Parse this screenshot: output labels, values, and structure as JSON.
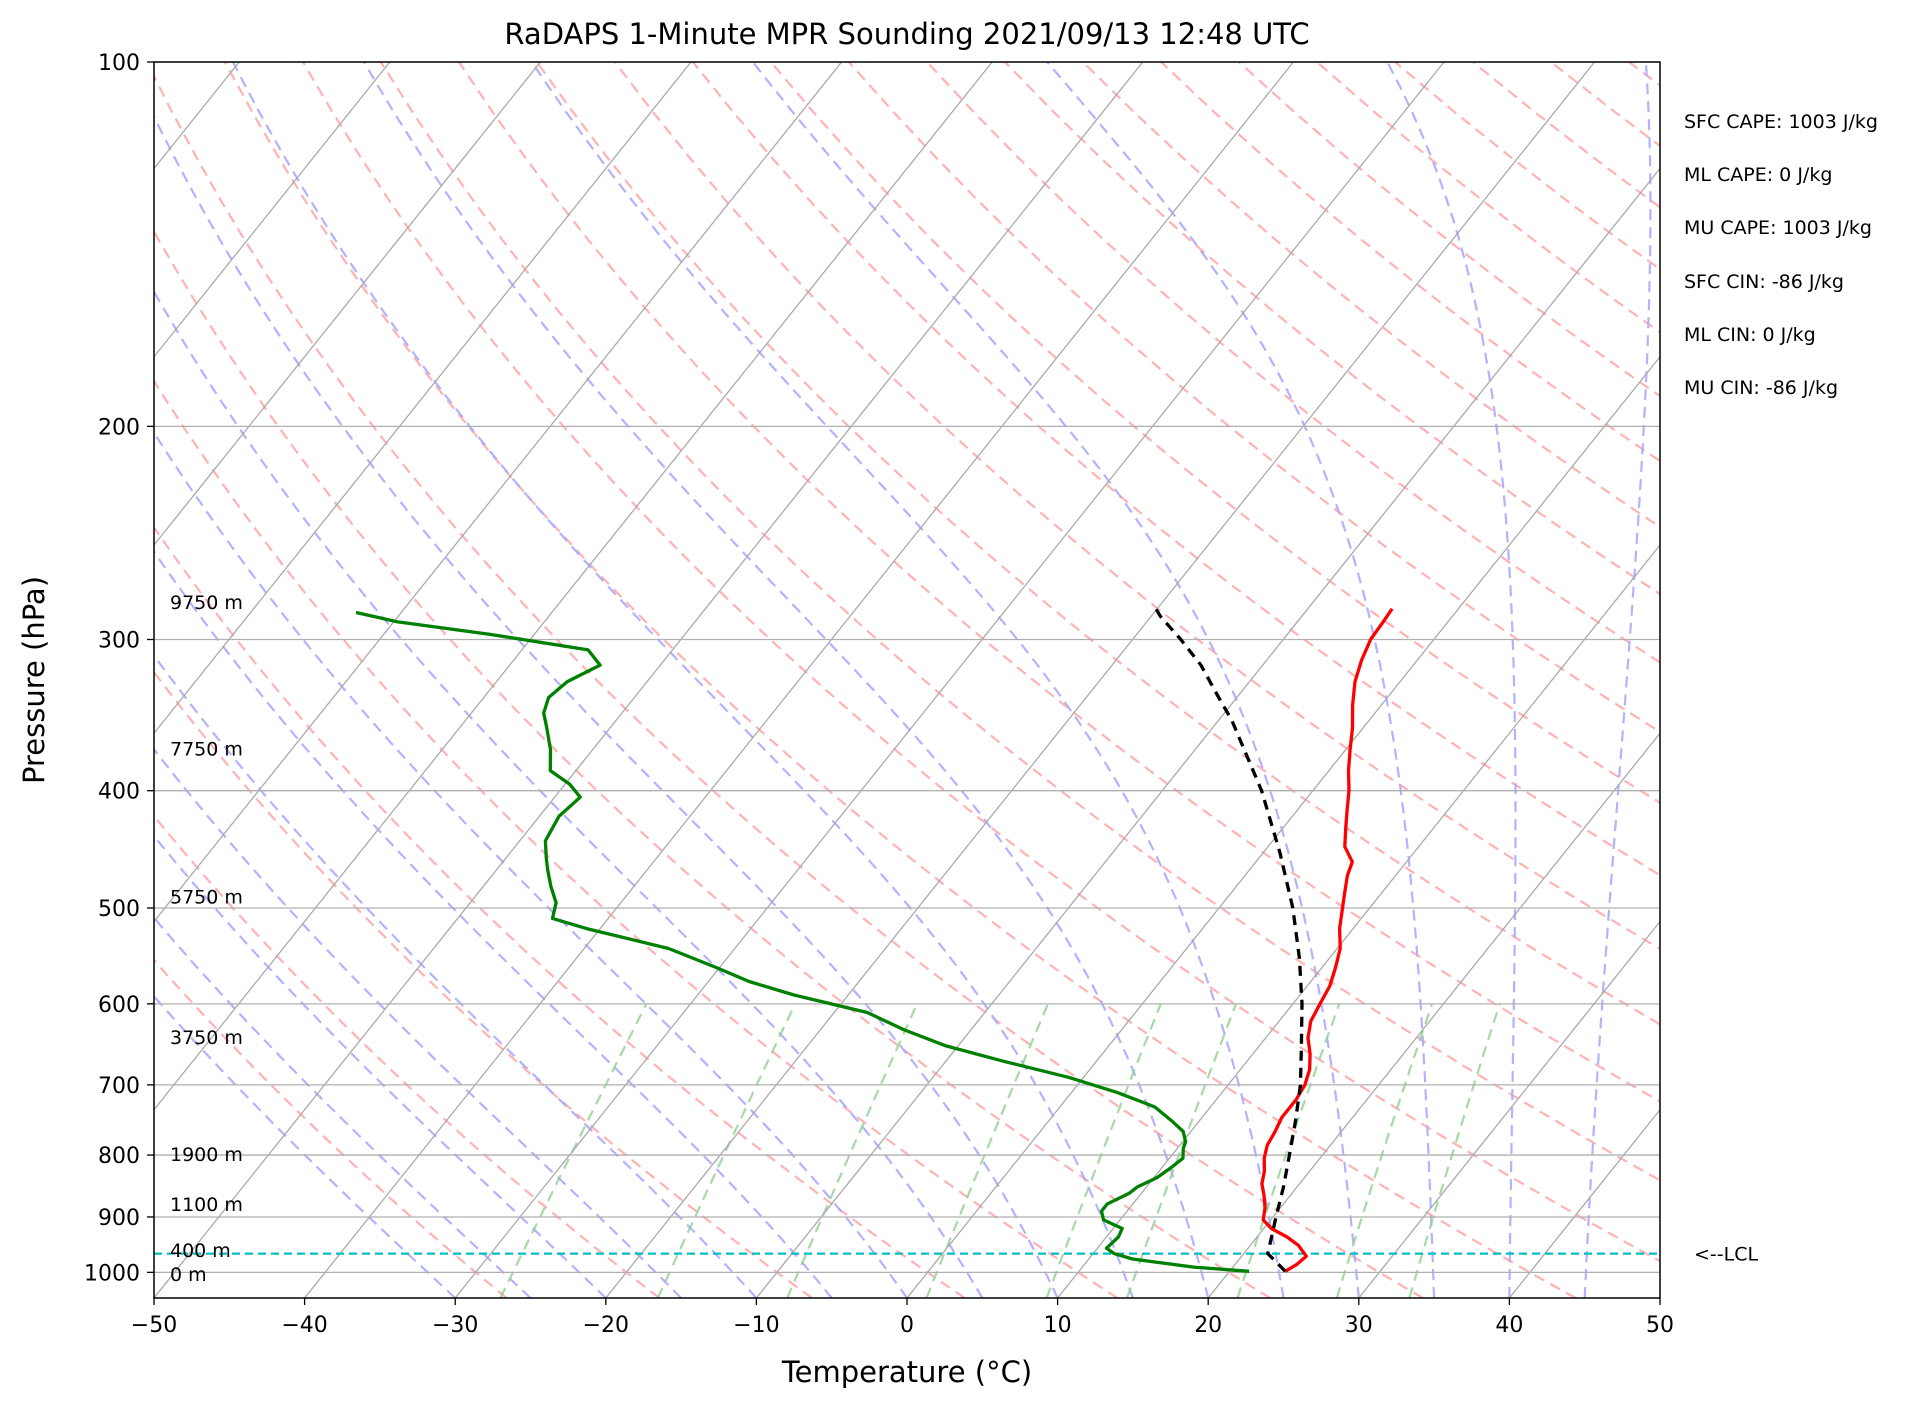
{
  "chart_data": {
    "type": "line",
    "subtype": "skew-t log-p sounding",
    "title": "RaDAPS 1-Minute MPR Sounding 2021/09/13 12:48 UTC",
    "xlabel": "Temperature (°C)",
    "ylabel": "Pressure (hPa)",
    "xlim": [
      -50,
      50
    ],
    "ylim": [
      1050,
      100
    ],
    "y_scale": "log",
    "x_ticks": [
      "−50",
      "−40",
      "−30",
      "−20",
      "−10",
      "0",
      "10",
      "20",
      "30",
      "40",
      "50"
    ],
    "x_tick_values": [
      -50,
      -40,
      -30,
      -20,
      -10,
      0,
      10,
      20,
      30,
      40,
      50
    ],
    "y_ticks": [
      "100",
      "200",
      "300",
      "400",
      "500",
      "600",
      "700",
      "800",
      "900",
      "1000"
    ],
    "y_tick_values": [
      100,
      200,
      300,
      400,
      500,
      600,
      700,
      800,
      900,
      1000
    ],
    "grid": "horizontal isobars at y ticks",
    "series": [
      {
        "role": "temperature",
        "color": "#ff0000",
        "style": "solid",
        "points": [
          [
            23.7,
            998
          ],
          [
            24.1,
            985
          ],
          [
            24.3,
            970
          ],
          [
            23.2,
            950
          ],
          [
            22.0,
            935
          ],
          [
            20.5,
            920
          ],
          [
            19.5,
            905
          ],
          [
            19.0,
            885
          ],
          [
            18.3,
            865
          ],
          [
            17.5,
            845
          ],
          [
            17.0,
            825
          ],
          [
            16.3,
            805
          ],
          [
            15.8,
            785
          ],
          [
            15.6,
            765
          ],
          [
            15.3,
            745
          ],
          [
            15.3,
            720
          ],
          [
            15.1,
            700
          ],
          [
            14.6,
            680
          ],
          [
            13.8,
            660
          ],
          [
            12.8,
            640
          ],
          [
            12.1,
            620
          ],
          [
            11.8,
            600
          ],
          [
            11.5,
            580
          ],
          [
            10.9,
            560
          ],
          [
            10.2,
            540
          ],
          [
            9.1,
            520
          ],
          [
            8.2,
            500
          ],
          [
            7.5,
            485
          ],
          [
            6.8,
            470
          ],
          [
            6.4,
            458
          ],
          [
            5.1,
            445
          ],
          [
            4.2,
            430
          ],
          [
            3.3,
            415
          ],
          [
            2.4,
            400
          ],
          [
            1.3,
            385
          ],
          [
            0.3,
            370
          ],
          [
            -0.7,
            355
          ],
          [
            -1.9,
            340
          ],
          [
            -3.0,
            325
          ],
          [
            -3.7,
            312
          ],
          [
            -4.2,
            300
          ],
          [
            -4.3,
            290
          ],
          [
            -4.4,
            283
          ]
        ]
      },
      {
        "role": "dewpoint",
        "color": "#008000",
        "style": "solid",
        "points": [
          [
            21.3,
            998
          ],
          [
            17.4,
            990
          ],
          [
            12.9,
            975
          ],
          [
            11.4,
            965
          ],
          [
            10.6,
            955
          ],
          [
            10.8,
            935
          ],
          [
            10.6,
            920
          ],
          [
            8.9,
            905
          ],
          [
            8.3,
            890
          ],
          [
            8.3,
            878
          ],
          [
            8.7,
            870
          ],
          [
            9.2,
            860
          ],
          [
            9.4,
            850
          ],
          [
            10.2,
            835
          ],
          [
            10.6,
            820
          ],
          [
            10.9,
            805
          ],
          [
            10.4,
            790
          ],
          [
            10.2,
            780
          ],
          [
            9.5,
            765
          ],
          [
            8.2,
            750
          ],
          [
            6.3,
            730
          ],
          [
            3.0,
            710
          ],
          [
            -1.0,
            690
          ],
          [
            -6.0,
            670
          ],
          [
            -10.8,
            650
          ],
          [
            -14.5,
            630
          ],
          [
            -17.8,
            610
          ],
          [
            -23.6,
            590
          ],
          [
            -27.3,
            575
          ],
          [
            -30.2,
            560
          ],
          [
            -34.4,
            540
          ],
          [
            -40.9,
            520
          ],
          [
            -43.7,
            510
          ],
          [
            -44.3,
            495
          ],
          [
            -45.5,
            480
          ],
          [
            -46.6,
            465
          ],
          [
            -47.3,
            455
          ],
          [
            -48.3,
            440
          ],
          [
            -48.7,
            420
          ],
          [
            -48.3,
            405
          ],
          [
            -49.7,
            395
          ],
          [
            -51.7,
            385
          ],
          [
            -52.8,
            370
          ],
          [
            -54.2,
            355
          ],
          [
            -55.2,
            345
          ],
          [
            -55.7,
            335
          ],
          [
            -55.3,
            325
          ],
          [
            -54.0,
            315
          ],
          [
            -55.6,
            306
          ],
          [
            -63.0,
            297
          ],
          [
            -69.8,
            290
          ],
          [
            -73.0,
            285
          ]
        ]
      },
      {
        "role": "parcel-path",
        "color": "#000000",
        "style": "dashed",
        "points": [
          [
            23.7,
            998
          ],
          [
            21.6,
            965
          ],
          [
            20.2,
            900
          ],
          [
            19.1,
            850
          ],
          [
            17.8,
            800
          ],
          [
            16.4,
            750
          ],
          [
            14.8,
            700
          ],
          [
            12.8,
            650
          ],
          [
            10.6,
            600
          ],
          [
            8.0,
            550
          ],
          [
            4.9,
            500
          ],
          [
            1.1,
            450
          ],
          [
            -3.4,
            400
          ],
          [
            -9.1,
            350
          ],
          [
            -11.2,
            335
          ],
          [
            -14.1,
            315
          ],
          [
            -16.8,
            300
          ],
          [
            -19.4,
            287
          ],
          [
            -20.6,
            280
          ]
        ]
      }
    ],
    "background_lines": {
      "isotherms_color": "#a9a9a9",
      "dry_adiabats_color": "#ffaaaa",
      "moist_adiabats_color": "#aaaaff",
      "mixing_ratio_color": "#8fd18f"
    },
    "lcl": {
      "pressure": 965,
      "label": "<--LCL",
      "color": "#00bfbf"
    },
    "height_labels": [
      {
        "text": "9750 m",
        "pressure": 280
      },
      {
        "text": "7750 m",
        "pressure": 370
      },
      {
        "text": "5750 m",
        "pressure": 490
      },
      {
        "text": "3750 m",
        "pressure": 640
      },
      {
        "text": "1900 m",
        "pressure": 800
      },
      {
        "text": "1100 m",
        "pressure": 880
      },
      {
        "text": "400 m",
        "pressure": 960
      },
      {
        "text": "0 m",
        "pressure": 1005
      }
    ],
    "indices": [
      "SFC CAPE: 1003 J/kg",
      "ML CAPE: 0 J/kg",
      "MU CAPE: 1003 J/kg",
      "SFC CIN: -86 J/kg",
      "ML CIN: 0 J/kg",
      "MU CIN: -86 J/kg"
    ]
  }
}
